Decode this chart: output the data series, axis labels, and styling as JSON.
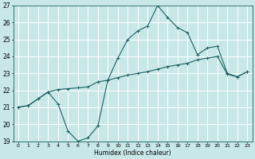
{
  "xlabel": "Humidex (Indice chaleur)",
  "bg_color": "#c8e8e8",
  "grid_color": "#ffffff",
  "line_color": "#1a5f5f",
  "ylim": [
    19,
    27
  ],
  "xlim": [
    -0.5,
    23.5
  ],
  "yticks": [
    19,
    20,
    21,
    22,
    23,
    24,
    25,
    26,
    27
  ],
  "xticks": [
    0,
    1,
    2,
    3,
    4,
    5,
    6,
    7,
    8,
    9,
    10,
    11,
    12,
    13,
    14,
    15,
    16,
    17,
    18,
    19,
    20,
    21,
    22,
    23
  ],
  "xtick_labels": [
    "0",
    "1",
    "2",
    "3",
    "4",
    "5",
    "6",
    "7",
    "8",
    "9",
    "10",
    "11",
    "12",
    "13",
    "14",
    "15",
    "16",
    "17",
    "18",
    "19",
    "20",
    "21",
    "22",
    "23"
  ],
  "line1_x": [
    0,
    1,
    2,
    3,
    4,
    5,
    6,
    7,
    8,
    9,
    10,
    11,
    12,
    13,
    14,
    15,
    16,
    17,
    18,
    19,
    20,
    21,
    22,
    23
  ],
  "line1_y": [
    21.0,
    21.1,
    21.5,
    21.9,
    21.2,
    19.6,
    19.0,
    19.2,
    19.9,
    22.6,
    23.9,
    25.0,
    25.5,
    25.8,
    27.0,
    26.3,
    25.7,
    25.4,
    24.1,
    24.5,
    24.6,
    23.0,
    22.8,
    23.1
  ],
  "line2_x": [
    0,
    1,
    2,
    3,
    4,
    5,
    6,
    7,
    8,
    9,
    10,
    11,
    12,
    13,
    14,
    15,
    16,
    17,
    18,
    19,
    20,
    21,
    22,
    23
  ],
  "line2_y": [
    21.0,
    21.1,
    21.5,
    21.9,
    22.05,
    22.1,
    22.15,
    22.2,
    22.5,
    22.6,
    22.75,
    22.9,
    23.0,
    23.1,
    23.25,
    23.4,
    23.5,
    23.6,
    23.8,
    23.9,
    24.0,
    22.95,
    22.8,
    23.1
  ]
}
